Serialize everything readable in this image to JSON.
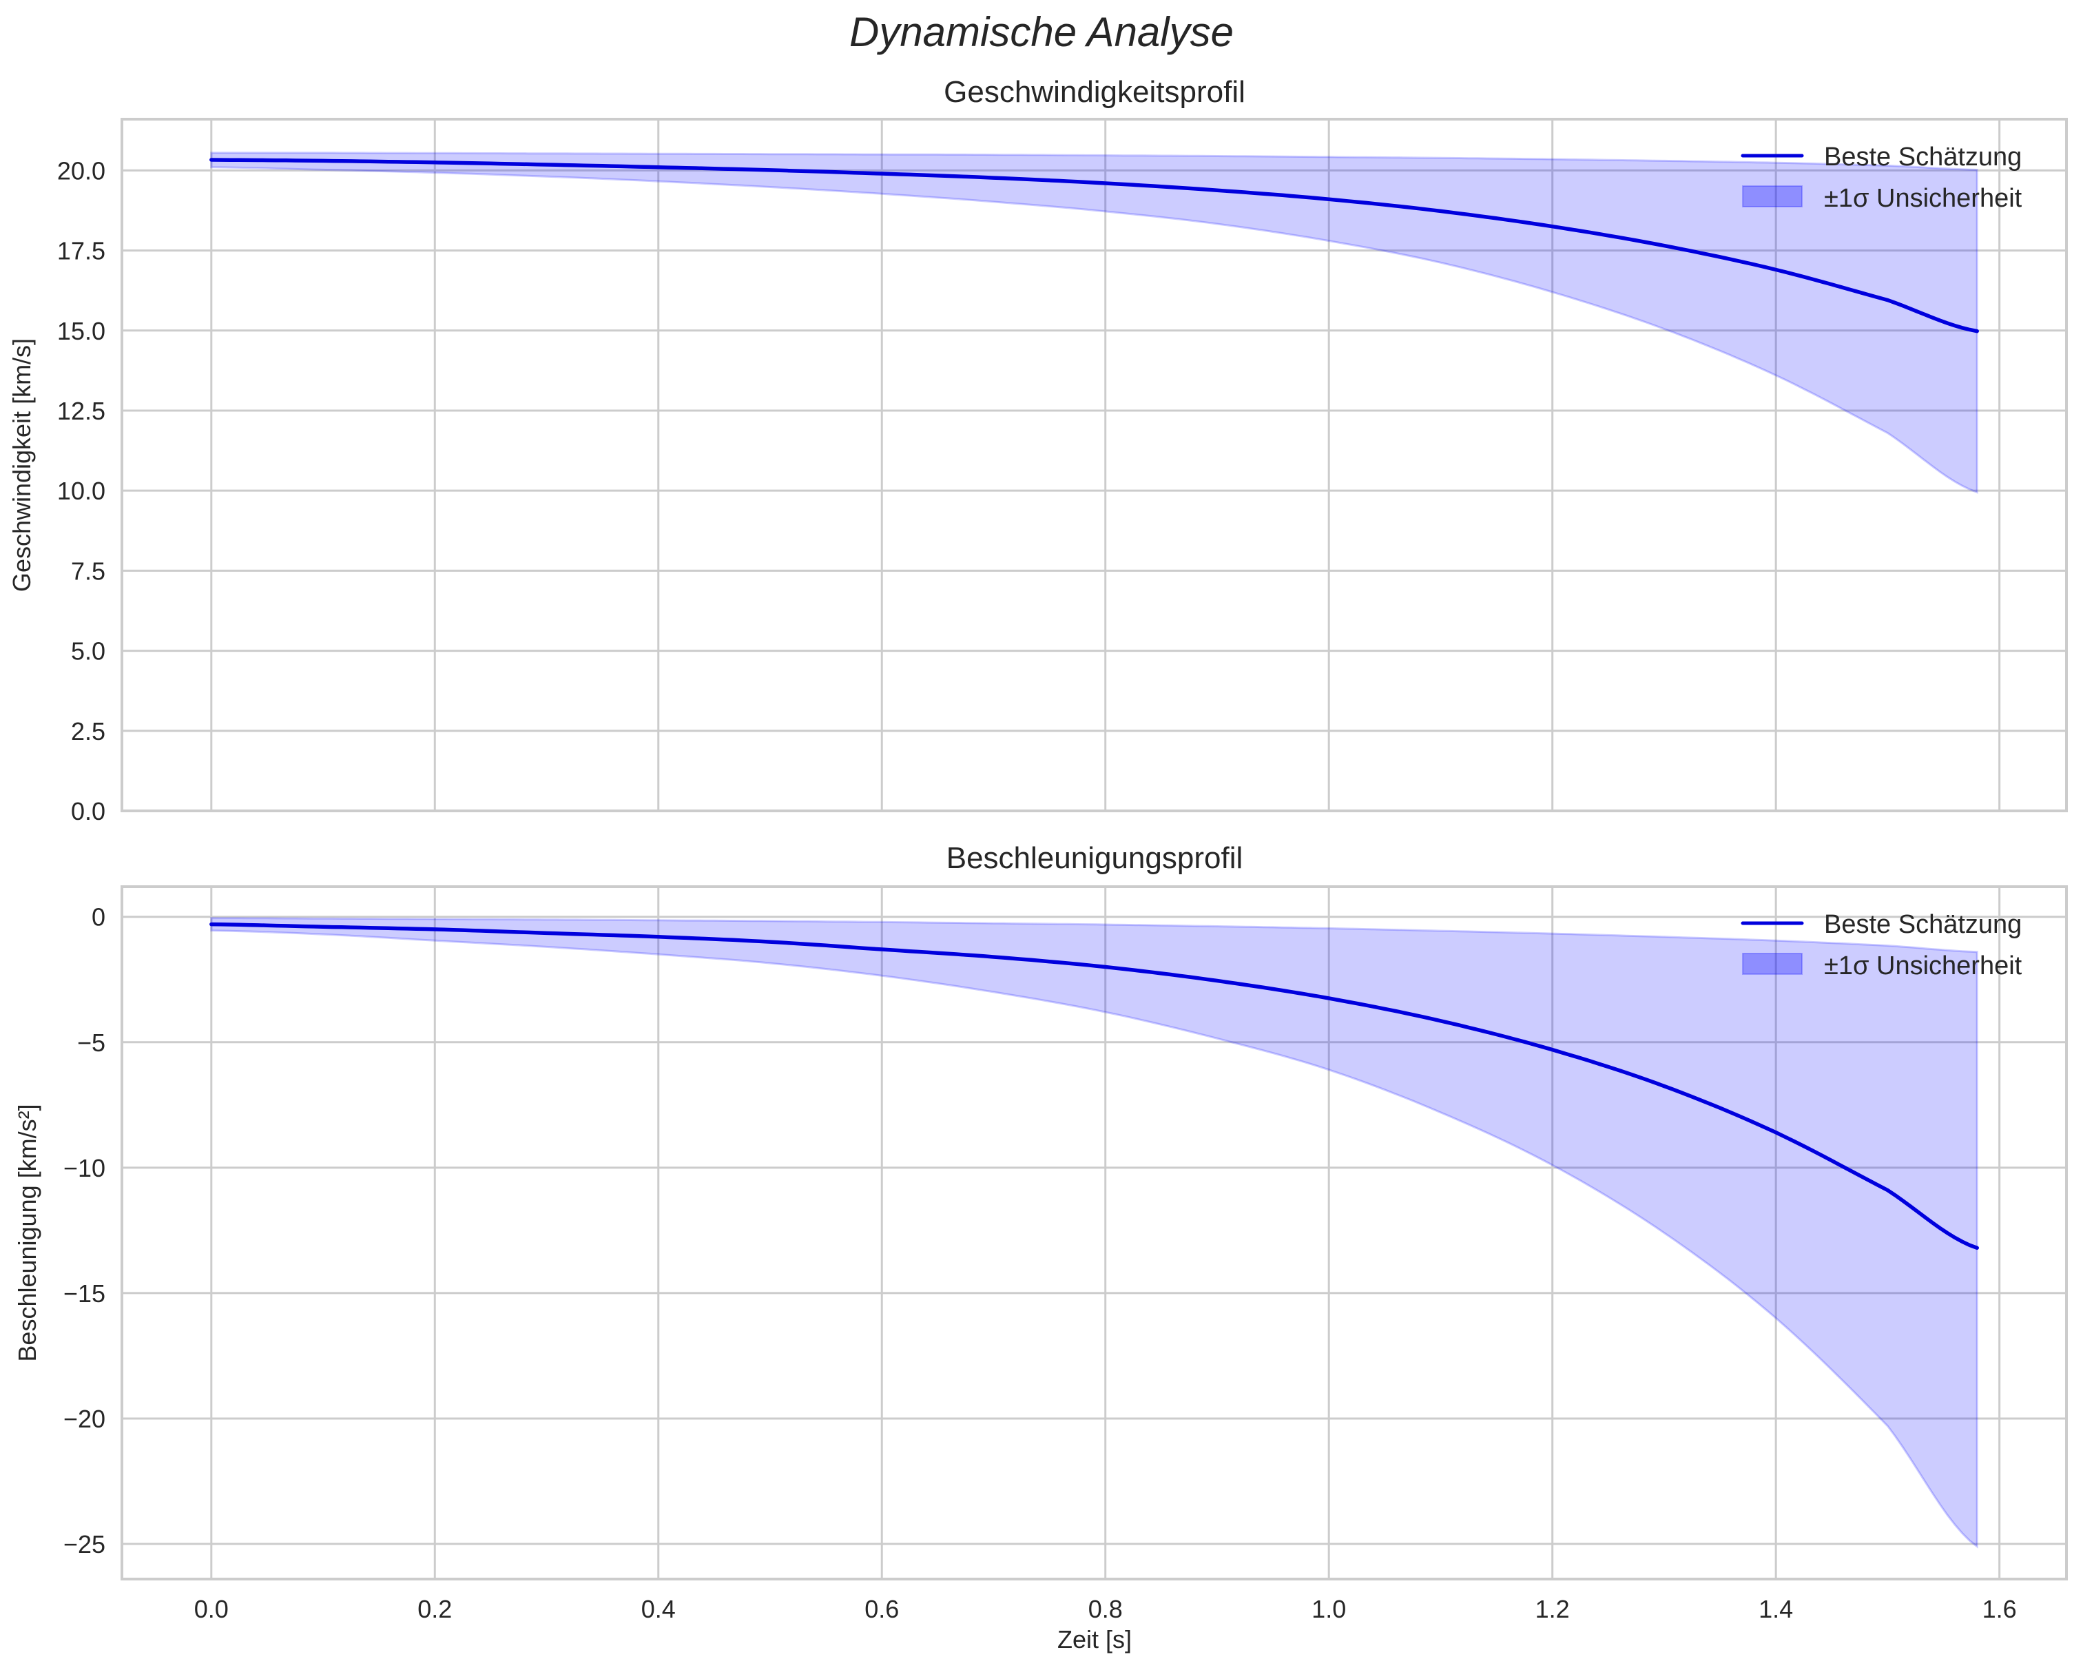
{
  "figure": {
    "suptitle": "Dynamische Analyse"
  },
  "legend": {
    "line_label": "Beste Schätzung",
    "band_label": "±1σ Unsicherheit"
  },
  "colors": {
    "line": "#0000dd",
    "band_fill": "#0000ff",
    "band_alpha": 0.2,
    "grid": "#cccccc",
    "frame": "#cccccc",
    "text": "#262626"
  },
  "chart_data": [
    {
      "type": "line",
      "title": "Geschwindigkeitsprofil",
      "xlabel": "",
      "ylabel": "Geschwindigkeit [km/s]",
      "xlim": [
        -0.08,
        1.66
      ],
      "ylim": [
        0.0,
        21.6
      ],
      "xticks": [
        0.0,
        0.2,
        0.4,
        0.6,
        0.8,
        1.0,
        1.2,
        1.4,
        1.6
      ],
      "yticks": [
        0.0,
        2.5,
        5.0,
        7.5,
        10.0,
        12.5,
        15.0,
        17.5,
        20.0
      ],
      "ytick_labels": [
        "0.0",
        "2.5",
        "5.0",
        "7.5",
        "10.0",
        "12.5",
        "15.0",
        "17.5",
        "20.0"
      ],
      "grid": true,
      "legend_position": "upper right",
      "x": [
        0.0,
        0.1,
        0.2,
        0.3,
        0.4,
        0.5,
        0.6,
        0.7,
        0.8,
        0.9,
        1.0,
        1.1,
        1.2,
        1.3,
        1.4,
        1.5,
        1.58
      ],
      "series": [
        {
          "name": "Beste Schätzung",
          "values": [
            20.33,
            20.3,
            20.25,
            20.18,
            20.1,
            20.01,
            19.9,
            19.77,
            19.6,
            19.38,
            19.1,
            18.73,
            18.25,
            17.65,
            16.9,
            15.95,
            14.98
          ]
        },
        {
          "name": "±1σ Unsicherheit (upper)",
          "values": [
            20.55,
            20.55,
            20.54,
            20.53,
            20.52,
            20.51,
            20.5,
            20.49,
            20.47,
            20.45,
            20.42,
            20.39,
            20.35,
            20.3,
            20.24,
            20.15,
            20.02
          ]
        },
        {
          "name": "±1σ Unsicherheit (lower)",
          "values": [
            20.1,
            20.02,
            19.93,
            19.81,
            19.66,
            19.48,
            19.27,
            19.02,
            18.72,
            18.33,
            17.8,
            17.12,
            16.2,
            15.05,
            13.6,
            11.8,
            9.95
          ]
        }
      ]
    },
    {
      "type": "line",
      "title": "Beschleunigungsprofil",
      "xlabel": "Zeit [s]",
      "ylabel": "Beschleunigung [km/s²]",
      "xlim": [
        -0.08,
        1.66
      ],
      "ylim": [
        -26.4,
        1.2
      ],
      "xticks": [
        0.0,
        0.2,
        0.4,
        0.6,
        0.8,
        1.0,
        1.2,
        1.4,
        1.6
      ],
      "xtick_labels": [
        "0.0",
        "0.2",
        "0.4",
        "0.6",
        "0.8",
        "1.0",
        "1.2",
        "1.4",
        "1.6"
      ],
      "yticks": [
        0,
        -5,
        -10,
        -15,
        -20,
        -25
      ],
      "ytick_labels": [
        "0",
        "−5",
        "−10",
        "−15",
        "−20",
        "−25"
      ],
      "grid": true,
      "legend_position": "upper right",
      "x": [
        0.0,
        0.1,
        0.2,
        0.3,
        0.4,
        0.5,
        0.6,
        0.7,
        0.8,
        0.9,
        1.0,
        1.1,
        1.2,
        1.3,
        1.4,
        1.5,
        1.58
      ],
      "series": [
        {
          "name": "Beste Schätzung",
          "values": [
            -0.3,
            -0.4,
            -0.5,
            -0.65,
            -0.8,
            -1.0,
            -1.3,
            -1.6,
            -2.0,
            -2.55,
            -3.25,
            -4.15,
            -5.3,
            -6.75,
            -8.6,
            -10.9,
            -13.2
          ]
        },
        {
          "name": "±1σ Unsicherheit (upper)",
          "values": [
            -0.05,
            -0.07,
            -0.09,
            -0.11,
            -0.14,
            -0.17,
            -0.21,
            -0.26,
            -0.31,
            -0.38,
            -0.46,
            -0.56,
            -0.67,
            -0.8,
            -0.95,
            -1.15,
            -1.4
          ]
        },
        {
          "name": "±1σ Unsicherheit (lower)",
          "values": [
            -0.55,
            -0.7,
            -0.95,
            -1.2,
            -1.5,
            -1.85,
            -2.35,
            -3.0,
            -3.8,
            -4.85,
            -6.1,
            -7.8,
            -9.9,
            -12.6,
            -16.0,
            -20.3,
            -25.1
          ]
        }
      ]
    }
  ]
}
